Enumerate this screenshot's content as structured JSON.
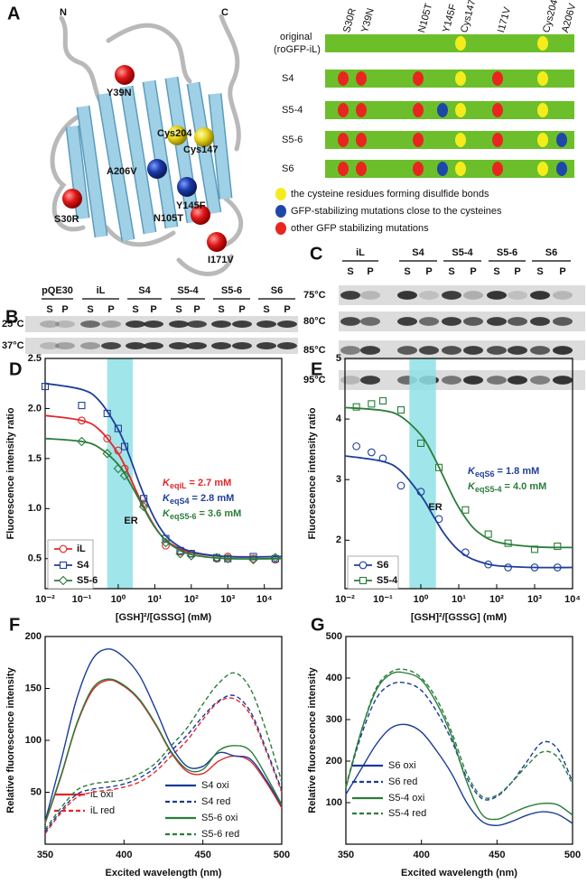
{
  "panels": {
    "A": {
      "letter": "A",
      "structure_labels": [
        "N",
        "C",
        "Y39N",
        "Cys204",
        "Cys147",
        "A206V",
        "Y145F",
        "S30R",
        "N105T",
        "I171V"
      ],
      "mutation_columns": [
        "S30R",
        "Y39N",
        "N105T",
        "Y145F",
        "Cys147",
        "I171V",
        "Cys204",
        "A206V"
      ],
      "rows": [
        {
          "label": "original",
          "sublabel": "(roGFP-iL)"
        },
        {
          "label": "S4"
        },
        {
          "label": "S5-4"
        },
        {
          "label": "S5-6"
        },
        {
          "label": "S6"
        }
      ],
      "legend": [
        "the cysteine residues forming disulfide bonds",
        "GFP-stabilizing mutations close to the cysteines",
        "other GFP stabilizing mutations"
      ]
    },
    "B": {
      "letter": "B",
      "lanes": [
        "pQE30",
        "iL",
        "S4",
        "S5-4",
        "S5-6",
        "S6"
      ],
      "fractions": [
        "S",
        "P"
      ],
      "temperatures": [
        "25°C",
        "37°C"
      ]
    },
    "C": {
      "letter": "C",
      "lanes": [
        "iL",
        "S4",
        "S5-4",
        "S5-6",
        "S6"
      ],
      "fractions": [
        "S",
        "P"
      ],
      "temperatures": [
        "75°C",
        "80°C",
        "85°C",
        "95°C"
      ]
    }
  },
  "chart_data": [
    {
      "type": "scatter",
      "panel": "D",
      "ylabel": "Fluorescence intensity ratio",
      "xlabel": "[GSH]²/[GSSG] (mM)",
      "xscale": "log",
      "xlim": [
        0.01,
        30000
      ],
      "xticks": [
        {
          "value": 0.01,
          "label": "10⁻²"
        },
        {
          "value": 0.1,
          "label": "10⁻¹"
        },
        {
          "value": 1,
          "label": "10⁰"
        },
        {
          "value": 10,
          "label": "10¹"
        },
        {
          "value": 100,
          "label": "10²"
        },
        {
          "value": 1000,
          "label": "10³"
        },
        {
          "value": 10000,
          "label": "10⁴"
        }
      ],
      "ylim": [
        0.2,
        2.5
      ],
      "yticks": [
        0.5,
        {
          "value": 1,
          "label": "1.0"
        },
        1.5,
        {
          "value": 2,
          "label": "2.0"
        },
        2.5
      ],
      "band": {
        "x": [
          0.5,
          2.5
        ],
        "label": "ER",
        "color": "#8fe0e6"
      },
      "annotations": [
        {
          "symbol": "K",
          "sub": "eqiL",
          "text": " = 2.7 mM",
          "color": "#e3262a"
        },
        {
          "symbol": "K",
          "sub": "eqS4",
          "text": " = 2.8 mM",
          "color": "#1f3f9a"
        },
        {
          "symbol": "K",
          "sub": "eqS5-6",
          "text": " = 3.6 mM",
          "color": "#2a7d3a"
        }
      ],
      "series": [
        {
          "name": "iL",
          "color": "#e3262a",
          "marker": "circle",
          "x": [
            0.1,
            0.5,
            1,
            1.5,
            5,
            20,
            50,
            100,
            500,
            1000,
            5000,
            20000
          ],
          "values": [
            1.88,
            1.7,
            1.58,
            1.4,
            1.05,
            0.63,
            0.57,
            0.55,
            0.5,
            0.52,
            0.5,
            0.49
          ],
          "fit_x": [
            0.01,
            0.1,
            0.3,
            1,
            2,
            4,
            8,
            15,
            30,
            100,
            1000,
            30000
          ],
          "fit_values": [
            1.93,
            1.88,
            1.79,
            1.55,
            1.33,
            1.09,
            0.88,
            0.73,
            0.64,
            0.56,
            0.52,
            0.52
          ]
        },
        {
          "name": "S4",
          "color": "#1f3f9a",
          "marker": "square",
          "x": [
            0.01,
            0.1,
            0.5,
            1,
            1.5,
            5,
            20,
            50,
            100,
            500,
            1000,
            5000,
            20000
          ],
          "values": [
            2.22,
            2.03,
            1.95,
            1.8,
            1.62,
            1.1,
            0.7,
            0.58,
            0.55,
            0.51,
            0.5,
            0.52,
            0.5
          ],
          "fit_x": [
            0.01,
            0.1,
            0.3,
            1,
            2,
            4,
            8,
            15,
            30,
            100,
            1000,
            30000
          ],
          "fit_values": [
            2.25,
            2.19,
            2.08,
            1.79,
            1.53,
            1.23,
            0.97,
            0.79,
            0.67,
            0.57,
            0.52,
            0.52
          ]
        },
        {
          "name": "S5-6",
          "color": "#2a7d3a",
          "marker": "diamond",
          "x": [
            0.1,
            0.5,
            1,
            1.5,
            5,
            20,
            50,
            100,
            500,
            1000,
            5000,
            20000
          ],
          "values": [
            1.67,
            1.55,
            1.4,
            1.33,
            1.02,
            0.66,
            0.55,
            0.53,
            0.51,
            0.5,
            0.49,
            0.51
          ],
          "fit_x": [
            0.01,
            0.1,
            0.3,
            1,
            2,
            4,
            8,
            15,
            30,
            100,
            1000,
            30000
          ],
          "fit_values": [
            1.7,
            1.67,
            1.61,
            1.44,
            1.27,
            1.07,
            0.87,
            0.73,
            0.63,
            0.54,
            0.5,
            0.5
          ]
        }
      ]
    },
    {
      "type": "scatter",
      "panel": "E",
      "ylabel": "Fluorescence intensity ratio",
      "xlabel": "[GSH]²/[GSSG] (mM)",
      "xscale": "log",
      "xlim": [
        0.01,
        10000
      ],
      "xticks": [
        {
          "value": 0.01,
          "label": "10⁻²"
        },
        {
          "value": 0.1,
          "label": "10⁻¹"
        },
        {
          "value": 1,
          "label": "10⁰"
        },
        {
          "value": 10,
          "label": "10¹"
        },
        {
          "value": 100,
          "label": "10²"
        },
        {
          "value": 1000,
          "label": "10³"
        },
        {
          "value": 10000,
          "label": "10⁴"
        }
      ],
      "ylim": [
        1.2,
        5
      ],
      "yticks": [
        2,
        3,
        4,
        5
      ],
      "band": {
        "x": [
          0.5,
          2.5
        ],
        "label": "ER",
        "color": "#8fe0e6"
      },
      "annotations": [
        {
          "symbol": "K",
          "sub": "eqS6",
          "text": " = 1.8 mM",
          "color": "#1f3f9a"
        },
        {
          "symbol": "K",
          "sub": "eqS5-4",
          "text": " = 4.0 mM",
          "color": "#2a7d3a"
        }
      ],
      "series": [
        {
          "name": "S6",
          "color": "#1f3f9a",
          "marker": "circle",
          "x": [
            0.02,
            0.05,
            0.1,
            0.3,
            1,
            3,
            15,
            60,
            200,
            1000,
            4000
          ],
          "values": [
            3.55,
            3.45,
            3.35,
            2.9,
            2.8,
            2.35,
            1.8,
            1.6,
            1.55,
            1.55,
            1.55
          ],
          "fit_x": [
            0.01,
            0.1,
            0.3,
            1,
            2,
            4,
            8,
            15,
            30,
            100,
            1000,
            10000
          ],
          "fit_values": [
            3.39,
            3.3,
            3.14,
            2.74,
            2.43,
            2.12,
            1.89,
            1.75,
            1.66,
            1.58,
            1.55,
            1.55
          ]
        },
        {
          "name": "S5-4",
          "color": "#2a7d3a",
          "marker": "square",
          "x": [
            0.02,
            0.05,
            0.1,
            0.3,
            1,
            3,
            15,
            60,
            200,
            1000,
            4000
          ],
          "values": [
            4.2,
            4.25,
            4.3,
            4.15,
            3.6,
            3.2,
            2.5,
            2.1,
            1.95,
            1.85,
            1.9
          ],
          "fit_x": [
            0.01,
            0.1,
            0.3,
            1,
            2,
            4,
            8,
            15,
            30,
            100,
            1000,
            10000
          ],
          "fit_values": [
            4.19,
            4.14,
            4.04,
            3.74,
            3.43,
            3.04,
            2.65,
            2.37,
            2.15,
            1.97,
            1.89,
            1.88
          ]
        }
      ]
    },
    {
      "type": "line",
      "panel": "F",
      "ylabel": "Relative fluorescence intensity",
      "xlabel": "Excited wavelength (nm)",
      "xlim": [
        350,
        500
      ],
      "xticks": [
        350,
        400,
        450,
        500
      ],
      "ylim": [
        0,
        200
      ],
      "yticks": [
        50,
        100,
        150,
        200
      ],
      "x": [
        350,
        360,
        370,
        380,
        390,
        400,
        410,
        420,
        430,
        440,
        450,
        460,
        470,
        480,
        490,
        500
      ],
      "series": [
        {
          "name": "iL oxi",
          "color": "#e3262a",
          "dashed": false,
          "values": [
            20,
            65,
            115,
            148,
            158,
            152,
            138,
            115,
            88,
            70,
            68,
            80,
            85,
            80,
            60,
            35
          ]
        },
        {
          "name": "iL red",
          "color": "#e3262a",
          "dashed": true,
          "values": [
            10,
            30,
            45,
            50,
            52,
            55,
            60,
            70,
            85,
            100,
            120,
            137,
            140,
            125,
            90,
            50
          ]
        },
        {
          "name": "S4 oxi",
          "color": "#1a3c96",
          "dashed": false,
          "values": [
            22,
            80,
            140,
            178,
            188,
            180,
            162,
            130,
            95,
            75,
            75,
            88,
            85,
            82,
            62,
            37
          ]
        },
        {
          "name": "S4 red",
          "color": "#1a3c96",
          "dashed": true,
          "values": [
            12,
            32,
            48,
            53,
            55,
            58,
            64,
            74,
            90,
            105,
            123,
            138,
            143,
            128,
            92,
            52
          ]
        },
        {
          "name": "S5-6 oxi",
          "color": "#2a7d3a",
          "dashed": false,
          "values": [
            21,
            66,
            116,
            150,
            159,
            153,
            139,
            116,
            89,
            72,
            72,
            90,
            95,
            90,
            66,
            38
          ]
        },
        {
          "name": "S5-6 red",
          "color": "#2a7d3a",
          "dashed": true,
          "values": [
            14,
            35,
            52,
            58,
            60,
            62,
            68,
            78,
            95,
            112,
            135,
            155,
            165,
            150,
            110,
            60
          ]
        }
      ]
    },
    {
      "type": "line",
      "panel": "G",
      "ylabel": "Relative fluorescence intensity",
      "xlabel": "Excited wavelength (nm)",
      "xlim": [
        350,
        500
      ],
      "xticks": [
        350,
        400,
        450,
        500
      ],
      "ylim": [
        0,
        500
      ],
      "yticks": [
        100,
        200,
        300,
        400,
        500
      ],
      "x": [
        350,
        360,
        370,
        380,
        390,
        400,
        410,
        420,
        430,
        440,
        450,
        460,
        470,
        480,
        490,
        500
      ],
      "series": [
        {
          "name": "S6 oxi",
          "color": "#1a3c96",
          "dashed": false,
          "values": [
            120,
            180,
            240,
            280,
            288,
            270,
            225,
            170,
            100,
            55,
            45,
            55,
            70,
            78,
            72,
            50
          ]
        },
        {
          "name": "S6 red",
          "color": "#1a3c96",
          "dashed": true,
          "values": [
            140,
            260,
            350,
            385,
            388,
            370,
            320,
            250,
            160,
            110,
            115,
            150,
            200,
            245,
            230,
            150
          ]
        },
        {
          "name": "S5-4 oxi",
          "color": "#2a7d3a",
          "dashed": false,
          "values": [
            135,
            270,
            370,
            410,
            412,
            395,
            340,
            260,
            150,
            72,
            60,
            75,
            90,
            98,
            95,
            70
          ]
        },
        {
          "name": "S5-4 red",
          "color": "#2a7d3a",
          "dashed": true,
          "values": [
            140,
            270,
            375,
            415,
            420,
            400,
            350,
            270,
            170,
            115,
            118,
            150,
            190,
            222,
            210,
            145
          ]
        }
      ]
    }
  ]
}
